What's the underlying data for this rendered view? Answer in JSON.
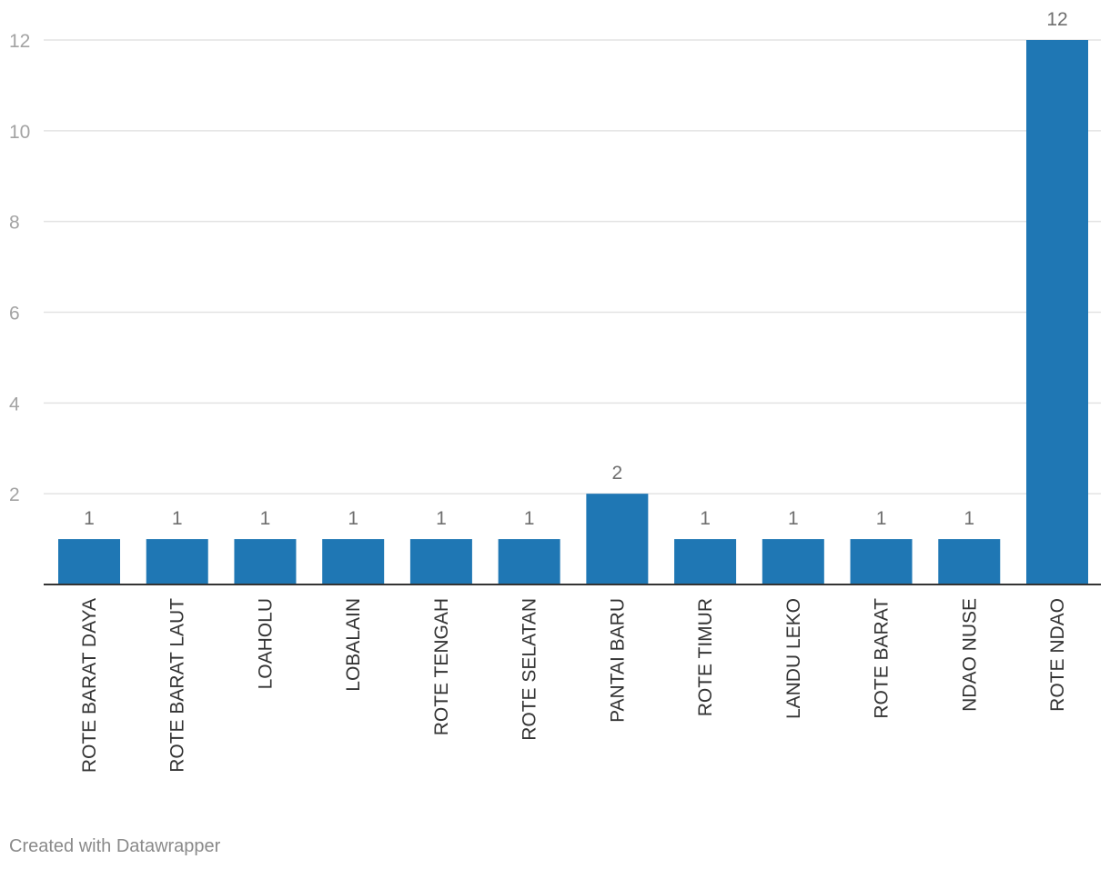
{
  "chart_data": {
    "type": "bar",
    "orientation": "vertical",
    "categories": [
      "ROTE BARAT DAYA",
      "ROTE BARAT LAUT",
      "LOAHOLU",
      "LOBALAIN",
      "ROTE TENGAH",
      "ROTE SELATAN",
      "PANTAI BARU",
      "ROTE TIMUR",
      "LANDU LEKO",
      "ROTE BARAT",
      "NDAO NUSE",
      "ROTE NDAO"
    ],
    "values": [
      1,
      1,
      1,
      1,
      1,
      1,
      2,
      1,
      1,
      1,
      1,
      12
    ],
    "title": "",
    "xlabel": "",
    "ylabel": "",
    "ylim": [
      0,
      12
    ],
    "yticks": [
      2,
      4,
      6,
      8,
      10,
      12
    ],
    "grid": true,
    "bar_color": "#1f77b4"
  },
  "footer": {
    "credit": "Created with Datawrapper"
  }
}
